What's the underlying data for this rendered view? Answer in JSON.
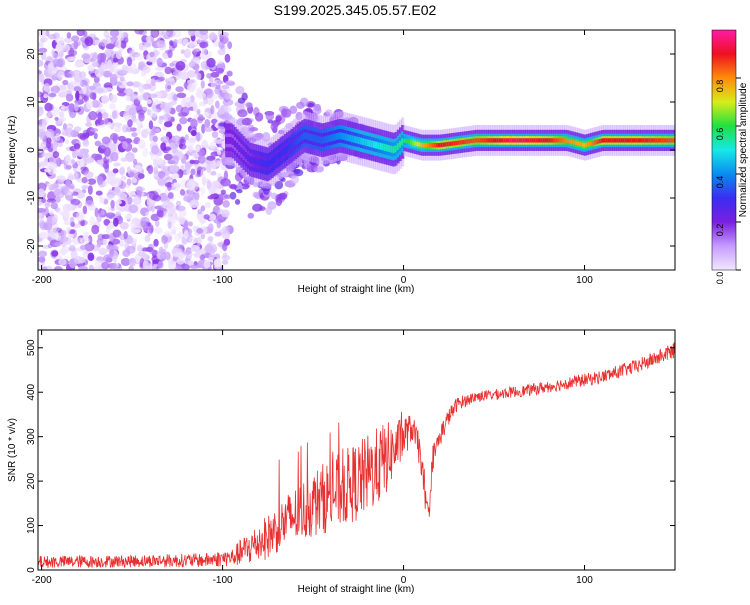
{
  "figure_title": "S199.2025.345.05.57.E02",
  "colors": {
    "trace": "#e83030",
    "colormap": [
      "#f2e8ff",
      "#c59bff",
      "#7a1fe0",
      "#3a2df2",
      "#0a8cf0",
      "#18e8e8",
      "#20e040",
      "#d8ec1a",
      "#ff8c0a",
      "#ee1020",
      "#ff1aa8"
    ]
  },
  "chart_data": [
    {
      "type": "heatmap",
      "title": "S199.2025.345.05.57.E02",
      "xlabel": "Height of straight line (km)",
      "ylabel": "Frequency (Hz)",
      "xlim": [
        -202,
        150
      ],
      "ylim": [
        -25,
        25
      ],
      "xticks": [
        {
          "value": -200,
          "label": "-200"
        },
        {
          "value": -100,
          "label": "-100"
        },
        {
          "value": 0,
          "label": "0"
        },
        {
          "value": 100,
          "label": "100"
        }
      ],
      "yticks": [
        {
          "value": -20,
          "label": "-20"
        },
        {
          "value": -10,
          "label": "-10"
        },
        {
          "value": 0,
          "label": "0"
        },
        {
          "value": 10,
          "label": "10"
        },
        {
          "value": 20,
          "label": "20"
        }
      ],
      "colorbar": {
        "label": "Normalized spectral amplitude",
        "range": [
          0,
          1
        ],
        "ticks": [
          {
            "value": 0.0,
            "label": "0.0"
          },
          {
            "value": 0.2,
            "label": "0.2"
          },
          {
            "value": 0.4,
            "label": "0.4"
          },
          {
            "value": 0.6,
            "label": "0.6"
          },
          {
            "value": 0.8,
            "label": "0.8"
          }
        ]
      },
      "ridge": {
        "x": [
          -95,
          -85,
          -75,
          -65,
          -55,
          -45,
          -35,
          -25,
          -15,
          -5,
          0,
          10,
          20,
          40,
          60,
          80,
          90,
          100,
          110,
          130,
          150
        ],
        "freq": [
          2,
          -2,
          -3,
          0,
          3,
          2,
          3,
          2,
          1,
          0,
          2,
          1,
          1,
          2,
          2,
          2,
          2,
          1,
          2,
          2,
          2
        ],
        "amplitude": [
          0.2,
          0.25,
          0.3,
          0.3,
          0.35,
          0.35,
          0.4,
          0.45,
          0.5,
          0.55,
          0.55,
          0.75,
          0.9,
          0.85,
          0.95,
          0.9,
          0.8,
          0.75,
          0.9,
          0.9,
          0.85
        ]
      }
    },
    {
      "type": "line",
      "xlabel": "Height of straight line (km)",
      "ylabel": "SNR (10 * v/v)",
      "xlim": [
        -202,
        150
      ],
      "ylim": [
        0,
        540
      ],
      "xticks": [
        {
          "value": -200,
          "label": "-200"
        },
        {
          "value": -100,
          "label": "-100"
        },
        {
          "value": 0,
          "label": "0"
        },
        {
          "value": 100,
          "label": "100"
        }
      ],
      "yticks": [
        {
          "value": 0,
          "label": "0"
        },
        {
          "value": 100,
          "label": "100"
        },
        {
          "value": 200,
          "label": "200"
        },
        {
          "value": 300,
          "label": "300"
        },
        {
          "value": 400,
          "label": "400"
        },
        {
          "value": 500,
          "label": "500"
        }
      ],
      "series": [
        {
          "name": "SNR",
          "x": [
            -202,
            -150,
            -110,
            -95,
            -85,
            -75,
            -65,
            -55,
            -45,
            -35,
            -25,
            -15,
            -10,
            -5,
            0,
            5,
            10,
            12,
            14,
            16,
            20,
            25,
            30,
            40,
            50,
            70,
            90,
            110,
            130,
            150
          ],
          "y": [
            18,
            20,
            22,
            28,
            50,
            75,
            110,
            135,
            160,
            180,
            200,
            230,
            250,
            270,
            300,
            320,
            250,
            140,
            130,
            250,
            300,
            345,
            375,
            390,
            395,
            405,
            420,
            435,
            460,
            495
          ],
          "noise": [
            14,
            14,
            16,
            20,
            40,
            50,
            60,
            70,
            80,
            85,
            90,
            90,
            85,
            60,
            50,
            30,
            40,
            20,
            25,
            30,
            25,
            20,
            15,
            12,
            12,
            13,
            14,
            15,
            16,
            18
          ]
        }
      ]
    }
  ]
}
